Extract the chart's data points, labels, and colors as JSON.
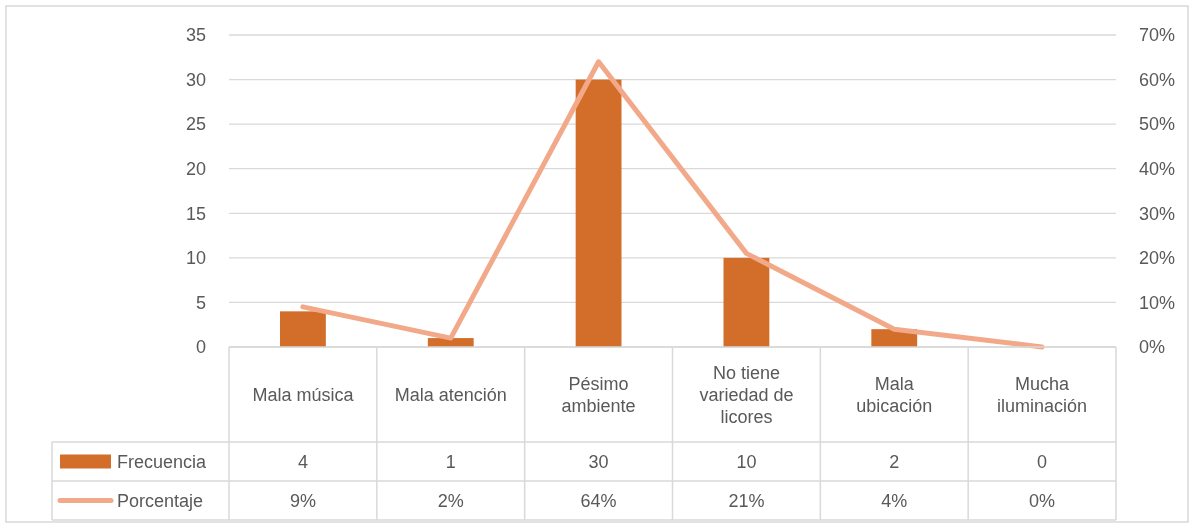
{
  "chart_data": {
    "type": "bar",
    "categories": [
      "Mala música",
      "Mala atención",
      "Pésimo ambiente",
      "No tiene variedad de licores",
      "Mala ubicación",
      "Mucha iluminación"
    ],
    "series": [
      {
        "name": "Frecuencia",
        "color": "#d26e2a",
        "values": [
          4,
          1,
          30,
          10,
          2,
          0
        ],
        "value_labels": [
          "4",
          "1",
          "30",
          "10",
          "2",
          "0"
        ]
      },
      {
        "name": "Porcentaje",
        "type": "line",
        "axis": "y2",
        "color": "#f2a98a",
        "values": [
          9,
          2,
          64,
          21,
          4,
          0
        ],
        "value_labels": [
          "9%",
          "2%",
          "64%",
          "21%",
          "4%",
          "0%"
        ]
      }
    ],
    "ylim": [
      0,
      35
    ],
    "yticks": [
      0,
      5,
      10,
      15,
      20,
      25,
      30,
      35
    ],
    "y2lim": [
      0,
      70
    ],
    "y2ticks": [
      {
        "value": 0,
        "label": "0%"
      },
      {
        "value": 10,
        "label": "10%"
      },
      {
        "value": 20,
        "label": "20%"
      },
      {
        "value": 30,
        "label": "30%"
      },
      {
        "value": 40,
        "label": "40%"
      },
      {
        "value": 50,
        "label": "50%"
      },
      {
        "value": 60,
        "label": "60%"
      },
      {
        "value": 70,
        "label": "70%"
      }
    ],
    "grid": "y",
    "legend": "bottom"
  }
}
